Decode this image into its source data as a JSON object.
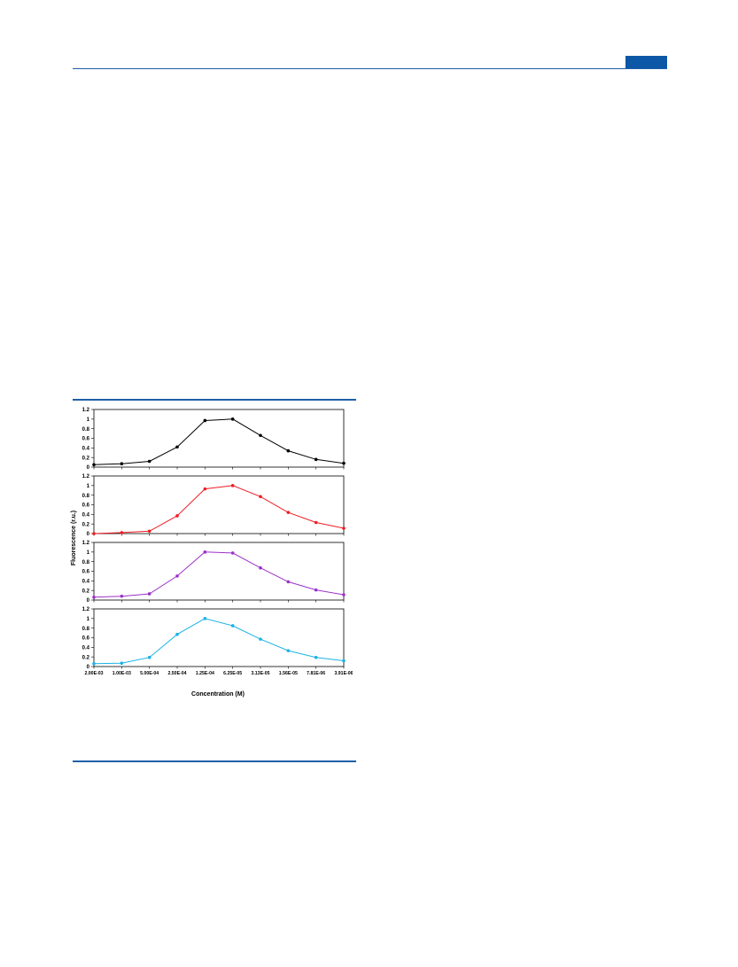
{
  "chart_data": {
    "type": "line",
    "layout": "stacked-panels",
    "xlabel": "Concentration (M)",
    "ylabel": "Fluorescence (r.u.)",
    "categories": [
      "2.00E-03",
      "1.00E-03",
      "5.00E-04",
      "2.50E-04",
      "1.25E-04",
      "6.25E-05",
      "3.13E-05",
      "1.56E-05",
      "7.81E-06",
      "3.91E-06"
    ],
    "ylim": [
      0,
      1.2
    ],
    "yticks": [
      "0",
      "0.2",
      "0.4",
      "0.6",
      "0.8",
      "1",
      "1.2"
    ],
    "grid": false,
    "legend": "none",
    "series": [
      {
        "color": "#000000",
        "values": [
          0.05,
          0.07,
          0.12,
          0.42,
          0.97,
          1.0,
          0.66,
          0.34,
          0.16,
          0.08
        ]
      },
      {
        "color": "#ee1c24",
        "values": [
          0.0,
          0.02,
          0.05,
          0.37,
          0.93,
          1.0,
          0.77,
          0.44,
          0.23,
          0.11
        ]
      },
      {
        "color": "#9b30c8",
        "values": [
          0.06,
          0.08,
          0.13,
          0.5,
          1.0,
          0.98,
          0.67,
          0.38,
          0.21,
          0.11
        ]
      },
      {
        "color": "#1ab3e6",
        "values": [
          0.06,
          0.07,
          0.19,
          0.67,
          1.0,
          0.85,
          0.57,
          0.33,
          0.19,
          0.12
        ]
      }
    ]
  }
}
